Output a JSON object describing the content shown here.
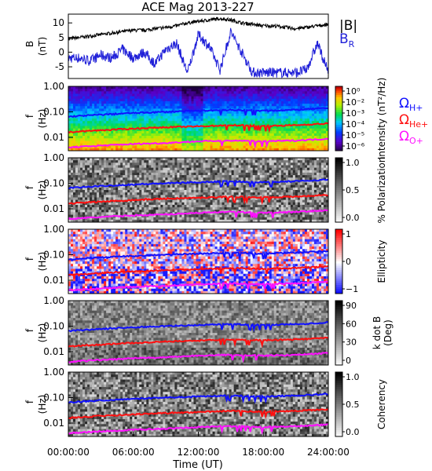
{
  "chart_data": {
    "title": "ACE Mag 2013-227",
    "xlabel": "Time (UT)",
    "x_ticks": [
      "00:00:00",
      "06:00:00",
      "12:00:00",
      "18:00:00",
      "24:00:00"
    ],
    "x_range_hours": [
      0,
      24
    ],
    "colors": {
      "btotal": "#000000",
      "br": "#1f1fd8",
      "oh": "#1010ff",
      "ohe": "#ff1010",
      "oo": "#ff10ff"
    },
    "panels": [
      {
        "id": "b-field",
        "type": "line",
        "ylabel": [
          "B",
          "(nT)"
        ],
        "ylim": [
          -9,
          13
        ],
        "y_ticks": [
          "10",
          "5",
          "0",
          "-5"
        ],
        "y_tick_values": [
          10,
          5,
          0,
          -5
        ],
        "legend": [
          "|B|",
          "B_R"
        ],
        "series": [
          {
            "name": "|B|",
            "x": [
              0,
              1,
              2,
              3,
              4,
              5,
              6,
              7,
              8,
              9,
              10,
              11,
              12,
              13,
              14,
              15,
              16,
              17,
              18,
              19,
              20,
              21,
              22,
              23,
              24
            ],
            "y": [
              4.5,
              5,
              5.5,
              6,
              6.5,
              7,
              7.5,
              7.5,
              8,
              8.5,
              9,
              10,
              10.5,
              11,
              11.5,
              11,
              10,
              9.5,
              9,
              9,
              8.5,
              8,
              8.5,
              9,
              9.5
            ]
          },
          {
            "name": "B_R",
            "x": [
              0,
              1,
              2,
              3,
              4,
              5,
              6,
              7,
              8,
              9,
              10,
              11,
              12,
              13,
              14,
              15,
              16,
              17,
              18,
              19,
              20,
              21,
              22,
              23,
              24
            ],
            "y": [
              -2,
              -2,
              -3,
              -1,
              -2,
              1,
              -2,
              0,
              -4,
              1,
              3,
              -7,
              6,
              2,
              -6,
              7,
              0,
              -7,
              -7,
              -7,
              -7,
              -7,
              -6,
              3,
              -7
            ]
          }
        ]
      },
      {
        "id": "intensity",
        "type": "heatmap",
        "ylabel": [
          "f",
          "(Hz)"
        ],
        "y_scale": "log",
        "ylim": [
          0.003,
          1.0
        ],
        "y_ticks": [
          "1.00",
          "0.10",
          "0.01"
        ],
        "colorbar": {
          "label": "Intensity (nT²/Hz)",
          "scale": "log",
          "range": [
            1e-06,
            1
          ],
          "ticks": [
            "10⁰",
            "10⁻²",
            "10⁻³",
            "10⁻⁴",
            "10⁻⁵",
            "10⁻⁶"
          ]
        },
        "gyro_labels": [
          "Ω",
          "H+",
          "Ω",
          "He+",
          "Ω",
          "O+"
        ]
      },
      {
        "id": "polarization",
        "type": "heatmap",
        "ylabel": [
          "f",
          "(Hz)"
        ],
        "y_scale": "log",
        "ylim": [
          0.003,
          1.0
        ],
        "y_ticks": [
          "1.00",
          "0.10",
          "0.01"
        ],
        "colorbar": {
          "label": "% Polarization",
          "range": [
            0,
            1
          ],
          "ticks": [
            "1.0",
            "0.5",
            "0.0"
          ]
        }
      },
      {
        "id": "ellipticity",
        "type": "heatmap",
        "ylabel": [
          "f",
          "(Hz)"
        ],
        "y_scale": "log",
        "ylim": [
          0.003,
          1.0
        ],
        "y_ticks": [
          "1.00",
          "0.10",
          "0.01"
        ],
        "colorbar": {
          "label": "Ellipticity",
          "range": [
            -1,
            1
          ],
          "ticks": [
            "1",
            "0",
            "−1"
          ]
        }
      },
      {
        "id": "kdotb",
        "type": "heatmap",
        "ylabel": [
          "f",
          "(Hz)"
        ],
        "y_scale": "log",
        "ylim": [
          0.003,
          1.0
        ],
        "y_ticks": [
          "1.00",
          "0.10",
          "0.01"
        ],
        "colorbar": {
          "label": [
            "k dot B",
            "(Deg)"
          ],
          "range": [
            0,
            90
          ],
          "ticks": [
            "90",
            "60",
            "30",
            "0"
          ]
        }
      },
      {
        "id": "coherency",
        "type": "heatmap",
        "ylabel": [
          "f",
          "(Hz)"
        ],
        "y_scale": "log",
        "ylim": [
          0.003,
          1.0
        ],
        "y_ticks": [
          "1.00",
          "0.10",
          "0.01"
        ],
        "colorbar": {
          "label": "Coherency",
          "range": [
            0,
            1
          ],
          "ticks": [
            "1.0",
            "0.5",
            "0.0"
          ]
        }
      }
    ],
    "gyrofrequency_lines": [
      {
        "name": "Ω H+",
        "x": [
          0,
          6,
          9,
          12,
          15,
          18,
          21,
          24
        ],
        "f": [
          0.065,
          0.09,
          0.1,
          0.11,
          0.12,
          0.11,
          0.12,
          0.14
        ]
      },
      {
        "name": "Ω He+",
        "x": [
          0,
          6,
          9,
          12,
          15,
          18,
          21,
          24
        ],
        "f": [
          0.016,
          0.022,
          0.025,
          0.027,
          0.03,
          0.028,
          0.03,
          0.035
        ]
      },
      {
        "name": "Ω O+",
        "x": [
          0,
          6,
          9,
          12,
          15,
          18,
          21,
          24
        ],
        "f": [
          0.004,
          0.0055,
          0.006,
          0.007,
          0.0075,
          0.007,
          0.0075,
          0.0088
        ]
      }
    ]
  }
}
